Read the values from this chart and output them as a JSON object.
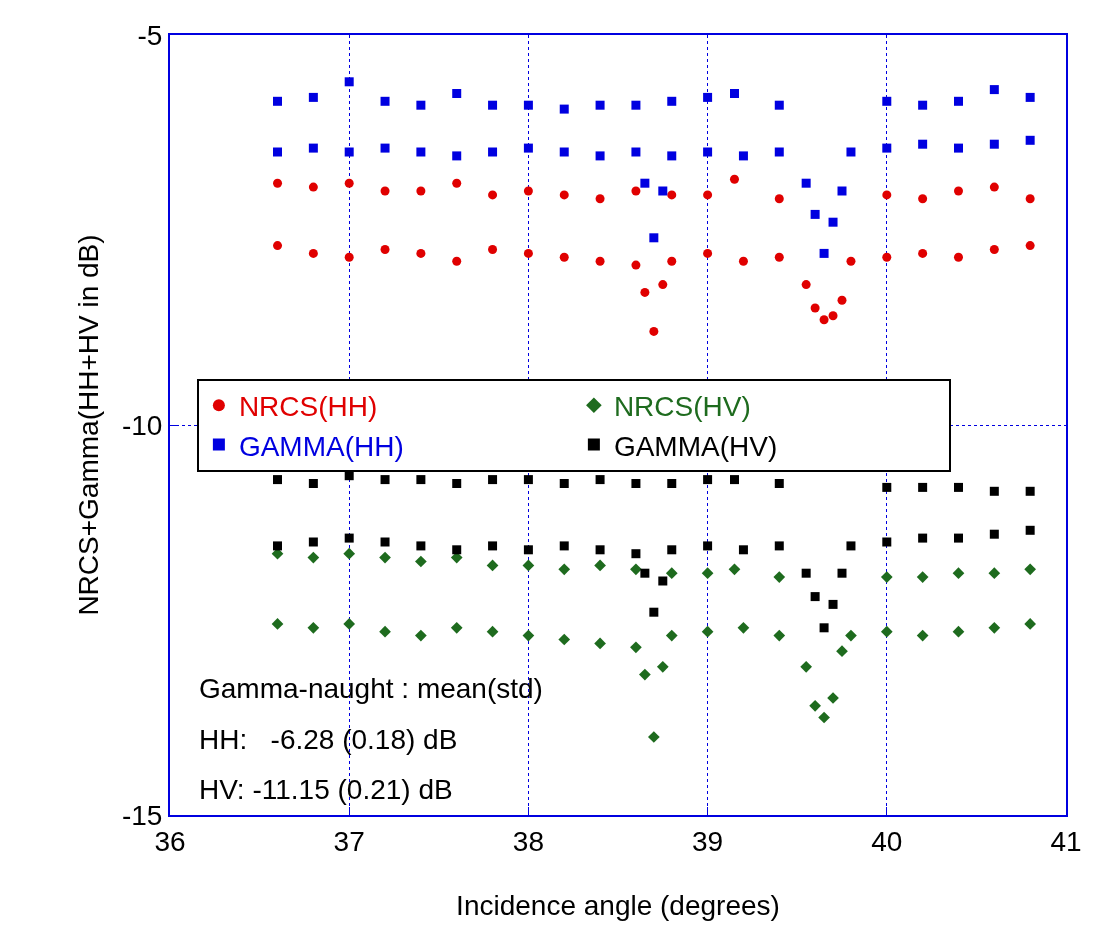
{
  "chart_data": {
    "type": "scatter",
    "xlabel": "Incidence angle (degrees)",
    "ylabel": "NRCS+Gamma(HH+HV in dB)",
    "x": [
      36.6,
      36.6,
      36.8,
      36.8,
      37.0,
      37.0,
      37.2,
      37.2,
      37.4,
      37.4,
      37.6,
      37.6,
      37.8,
      37.8,
      38.0,
      38.0,
      38.2,
      38.2,
      38.4,
      38.4,
      38.6,
      38.6,
      38.65,
      38.7,
      38.75,
      38.8,
      38.8,
      39.0,
      39.0,
      39.15,
      39.2,
      39.4,
      39.4,
      39.55,
      39.6,
      39.65,
      39.7,
      39.75,
      39.8,
      40.0,
      40.0,
      40.2,
      40.2,
      40.4,
      40.4,
      40.6,
      40.6,
      40.8,
      40.8
    ],
    "series": [
      {
        "name": "NRCS(HH)",
        "color": "#e00000",
        "marker": "circle",
        "values": [
          -6.9,
          -7.7,
          -6.95,
          -7.8,
          -6.9,
          -7.85,
          -7.0,
          -7.75,
          -7.0,
          -7.8,
          -6.9,
          -7.9,
          -7.05,
          -7.75,
          -7.0,
          -7.8,
          -7.05,
          -7.85,
          -7.1,
          -7.9,
          -7.0,
          -7.95,
          -8.3,
          -8.8,
          -8.2,
          -7.05,
          -7.9,
          -7.05,
          -7.8,
          -6.85,
          -7.9,
          -7.1,
          -7.85,
          -8.2,
          -8.5,
          -8.65,
          -8.6,
          -8.4,
          -7.9,
          -7.05,
          -7.85,
          -7.1,
          -7.8,
          -7.0,
          -7.85,
          -6.95,
          -7.75,
          -7.1,
          -7.7
        ]
      },
      {
        "name": "NRCS(HV)",
        "color": "#1e6b1e",
        "marker": "diamond",
        "values": [
          -11.65,
          -12.55,
          -11.7,
          -12.6,
          -11.65,
          -12.55,
          -11.7,
          -12.65,
          -11.75,
          -12.7,
          -11.7,
          -12.6,
          -11.8,
          -12.65,
          -11.8,
          -12.7,
          -11.85,
          -12.75,
          -11.8,
          -12.8,
          -11.85,
          -12.85,
          -13.2,
          -14.0,
          -13.1,
          -11.9,
          -12.7,
          -11.9,
          -12.65,
          -11.85,
          -12.6,
          -11.95,
          -12.7,
          -13.1,
          -13.6,
          -13.75,
          -13.5,
          -12.9,
          -12.7,
          -11.95,
          -12.65,
          -11.95,
          -12.7,
          -11.9,
          -12.65,
          -11.9,
          -12.6,
          -11.85,
          -12.55
        ]
      },
      {
        "name": "GAMMA(HH)",
        "color": "#0000e0",
        "marker": "square",
        "values": [
          -5.85,
          -6.5,
          -5.8,
          -6.45,
          -5.6,
          -6.5,
          -5.85,
          -6.45,
          -5.9,
          -6.5,
          -5.75,
          -6.55,
          -5.9,
          -6.5,
          -5.9,
          -6.45,
          -5.95,
          -6.5,
          -5.9,
          -6.55,
          -5.9,
          -6.5,
          -6.9,
          -7.6,
          -7.0,
          -5.85,
          -6.55,
          -5.8,
          -6.5,
          -5.75,
          -6.55,
          -5.9,
          -6.5,
          -6.9,
          -7.3,
          -7.8,
          -7.4,
          -7.0,
          -6.5,
          -5.85,
          -6.45,
          -5.9,
          -6.4,
          -5.85,
          -6.45,
          -5.7,
          -6.4,
          -5.8,
          -6.35
        ]
      },
      {
        "name": "GAMMA(HV)",
        "color": "#000000",
        "marker": "square",
        "values": [
          -10.7,
          -11.55,
          -10.75,
          -11.5,
          -10.65,
          -11.45,
          -10.7,
          -11.5,
          -10.7,
          -11.55,
          -10.75,
          -11.6,
          -10.7,
          -11.55,
          -10.7,
          -11.6,
          -10.75,
          -11.55,
          -10.7,
          -11.6,
          -10.75,
          -11.65,
          -11.9,
          -12.4,
          -12.0,
          -10.75,
          -11.6,
          -10.7,
          -11.55,
          -10.7,
          -11.6,
          -10.75,
          -11.55,
          -11.9,
          -12.2,
          -12.6,
          -12.3,
          -11.9,
          -11.55,
          -10.8,
          -11.5,
          -10.8,
          -11.45,
          -10.8,
          -11.45,
          -10.85,
          -11.4,
          -10.85,
          -11.35
        ]
      }
    ],
    "xlim": [
      36,
      41
    ],
    "xticks": [
      36,
      37,
      38,
      39,
      40,
      41
    ],
    "ylim": [
      -15,
      -5
    ],
    "yticks": [
      -15,
      -10,
      -5
    ],
    "grid": true,
    "legend": "left",
    "annotations": [
      "Gamma-naught : mean(std)",
      "HH:   -6.28 (0.18) dB",
      "HV: -11.15 (0.21) dB"
    ]
  }
}
